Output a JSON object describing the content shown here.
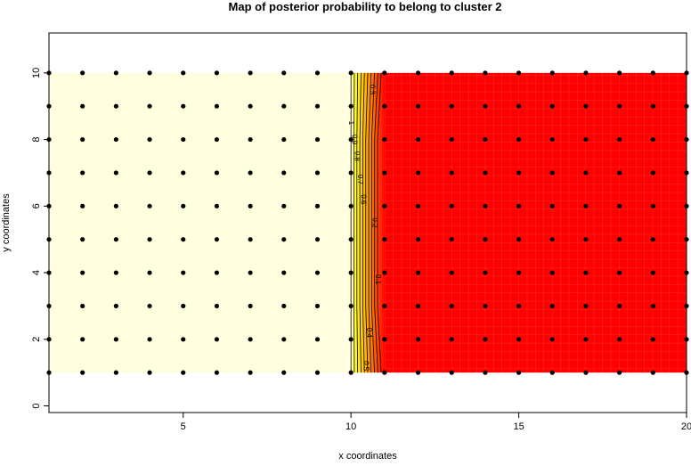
{
  "chart_data": {
    "type": "heatmap",
    "title": "Map of posterior probability to belong to cluster  2",
    "xlabel": "x coordinates",
    "ylabel": "y coordinates",
    "xlim": [
      1,
      20
    ],
    "ylim": [
      -0.2,
      11.2
    ],
    "x_ticks": [
      5,
      10,
      15,
      20
    ],
    "y_ticks": [
      0,
      2,
      4,
      6,
      8,
      10
    ],
    "x": [
      1,
      2,
      3,
      4,
      5,
      6,
      7,
      8,
      9,
      10,
      11,
      12,
      13,
      14,
      15,
      16,
      17,
      18,
      19,
      20
    ],
    "y": [
      1,
      2,
      3,
      4,
      5,
      6,
      7,
      8,
      9,
      10
    ],
    "z_by_x": [
      1,
      1,
      1,
      1,
      1,
      1,
      1,
      1,
      1,
      1,
      0,
      0,
      0,
      0,
      0,
      0,
      0,
      0,
      0,
      0
    ],
    "contour_levels": [
      1,
      0.9,
      0.8,
      0.7,
      0.6,
      0.5,
      0.4,
      0.3,
      0.2,
      0.1
    ],
    "contour_labels_shown": [
      "1",
      "0.9",
      "0.8",
      "0.7",
      "0.6",
      "0.5",
      "0.4",
      "0.3",
      "0.2",
      "0.1"
    ],
    "colors": {
      "high": "#FFFFE0",
      "mid_high": "#FFFF00",
      "mid": "#FF8000",
      "low": "#FF0000",
      "points": "#000000"
    },
    "grid": false
  }
}
